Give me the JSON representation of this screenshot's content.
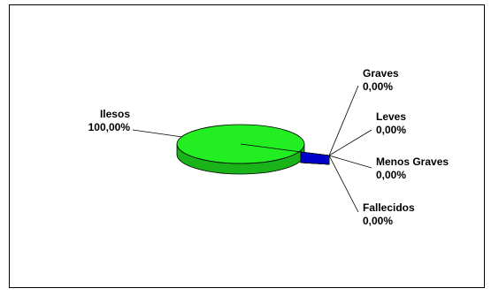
{
  "chart_data": {
    "type": "pie",
    "categories": [
      "Ilesos",
      "Graves",
      "Leves",
      "Menos Graves",
      "Fallecidos"
    ],
    "values": [
      100,
      0,
      0,
      0,
      0
    ],
    "value_labels": [
      "100,00%",
      "0,00%",
      "0,00%",
      "0,00%",
      "0,00%"
    ],
    "colors": [
      "#22ee22",
      "#0000cc",
      "#0000cc",
      "#0000cc",
      "#0000cc"
    ]
  }
}
